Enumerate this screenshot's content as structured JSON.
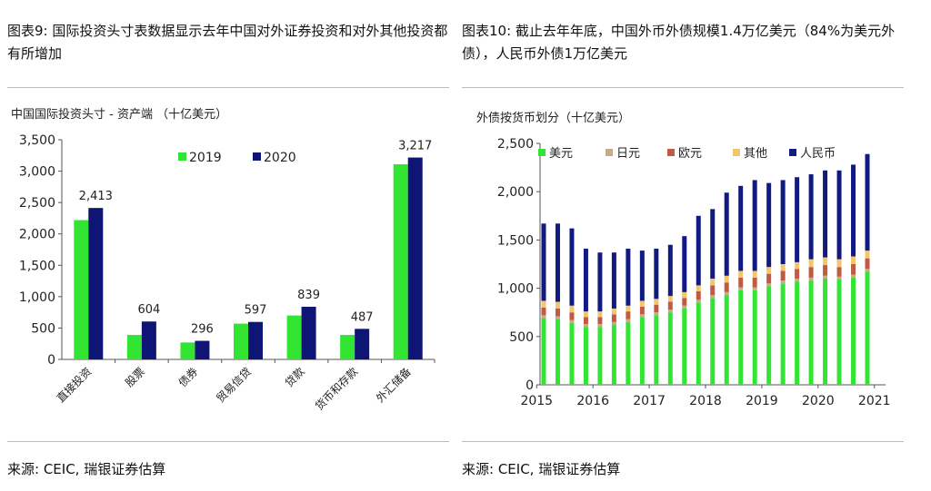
{
  "left": {
    "title": "图表9: 国际投资头寸表数据显示去年中国对外证券投资和对外其他投资都有所增加",
    "source": "来源: CEIC, 瑞银证券估算",
    "colors": {
      "s2019": "#33e533",
      "s2020": "#0f1574",
      "axis": "#555555"
    },
    "chart_data": {
      "type": "bar",
      "title": "中国国际投资头寸 - 资产端 （十亿美元）",
      "categories": [
        "直接投资",
        "股票",
        "债券",
        "贸易信贷",
        "贷款",
        "货币和存款",
        "外汇储备"
      ],
      "series": [
        {
          "name": "2019",
          "values": [
            2220,
            390,
            270,
            570,
            700,
            390,
            3110
          ]
        },
        {
          "name": "2020",
          "values": [
            2413,
            604,
            296,
            597,
            839,
            487,
            3217
          ]
        }
      ],
      "data_labels": [
        "2,413",
        "604",
        "296",
        "597",
        "839",
        "487",
        "3,217"
      ],
      "ylim": [
        0,
        3500
      ],
      "yticks": [
        "0",
        "500",
        "1,000",
        "1,500",
        "2,000",
        "2,500",
        "3,000",
        "3,500"
      ],
      "legend_position": "top-center",
      "grid": false
    }
  },
  "right": {
    "title": "图表10: 截止去年年底，中国外币外债规模1.4万亿美元（84%为美元外债），人民币外债1万亿美元",
    "source": "来源: CEIC, 瑞银证券估算",
    "colors": {
      "usd": "#33e533",
      "jpy": "#c9a98b",
      "eur": "#c05a42",
      "other": "#f2c66d",
      "rmb": "#101a80",
      "axis": "#555555"
    },
    "chart_data": {
      "type": "bar",
      "stacked": true,
      "title": "外债按货币划分（十亿美元）",
      "x": [
        "2015Q1",
        "2015Q2",
        "2015Q3",
        "2015Q4",
        "2016Q1",
        "2016Q2",
        "2016Q3",
        "2016Q4",
        "2017Q1",
        "2017Q2",
        "2017Q3",
        "2017Q4",
        "2018Q1",
        "2018Q2",
        "2018Q3",
        "2018Q4",
        "2019Q1",
        "2019Q2",
        "2019Q3",
        "2019Q4",
        "2020Q1",
        "2020Q2",
        "2020Q3",
        "2020Q4"
      ],
      "xticks": [
        "2015",
        "2016",
        "2017",
        "2018",
        "2019",
        "2020",
        "2021"
      ],
      "series": [
        {
          "name": "美元",
          "values": [
            690,
            680,
            640,
            600,
            600,
            620,
            650,
            700,
            720,
            750,
            790,
            850,
            900,
            930,
            980,
            980,
            1020,
            1050,
            1070,
            1080,
            1100,
            1090,
            1110,
            1170
          ]
        },
        {
          "name": "日元",
          "values": [
            30,
            30,
            30,
            30,
            30,
            30,
            30,
            30,
            30,
            30,
            30,
            30,
            30,
            30,
            30,
            30,
            30,
            30,
            30,
            30,
            30,
            30,
            30,
            30
          ]
        },
        {
          "name": "欧元",
          "values": [
            80,
            80,
            80,
            70,
            70,
            80,
            80,
            80,
            80,
            80,
            80,
            90,
            100,
            100,
            100,
            100,
            100,
            100,
            100,
            110,
            110,
            100,
            110,
            110
          ]
        },
        {
          "name": "其他",
          "values": [
            70,
            70,
            70,
            60,
            60,
            60,
            60,
            60,
            60,
            60,
            60,
            60,
            70,
            70,
            70,
            70,
            70,
            70,
            70,
            80,
            80,
            80,
            80,
            80
          ]
        },
        {
          "name": "人民币",
          "values": [
            800,
            810,
            800,
            650,
            610,
            580,
            590,
            520,
            520,
            530,
            580,
            720,
            720,
            860,
            880,
            940,
            870,
            870,
            880,
            880,
            900,
            920,
            950,
            1000
          ]
        }
      ],
      "ylim": [
        0,
        2500
      ],
      "yticks": [
        "0",
        "500",
        "1,000",
        "1,500",
        "2,000",
        "2,500"
      ],
      "legend_position": "top-left",
      "grid": false
    }
  }
}
